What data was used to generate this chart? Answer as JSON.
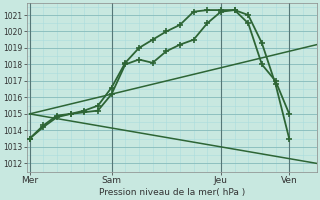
{
  "background_color": "#c8e8e0",
  "grid_color_major": "#88bbbb",
  "grid_color_minor": "#aadddd",
  "line_color": "#2d6535",
  "ylabel_ticks": [
    1012,
    1013,
    1014,
    1015,
    1016,
    1017,
    1018,
    1019,
    1020,
    1021
  ],
  "xlabel": "Pression niveau de la mer( hPa )",
  "day_labels": [
    "Mer",
    "Sam",
    "Jeu",
    "Ven"
  ],
  "day_positions": [
    0.0,
    3.0,
    7.0,
    9.5
  ],
  "ylim": [
    1011.5,
    1021.7
  ],
  "xlim": [
    -0.1,
    10.5
  ],
  "series": [
    {
      "x": [
        0.0,
        0.5,
        1.0,
        1.5,
        2.0,
        2.5,
        3.0,
        3.5,
        4.0,
        4.5,
        5.0,
        5.5,
        6.0,
        6.5,
        7.0,
        7.5,
        8.0,
        8.5,
        9.0,
        9.5
      ],
      "y": [
        1013.5,
        1014.3,
        1014.9,
        1015.0,
        1015.1,
        1015.2,
        1016.2,
        1018.0,
        1018.3,
        1018.1,
        1018.8,
        1019.2,
        1019.5,
        1020.5,
        1021.2,
        1021.3,
        1020.5,
        1018.0,
        1017.0,
        1015.0
      ],
      "marker": "+",
      "markersize": 5,
      "linewidth": 1.3
    },
    {
      "x": [
        0.0,
        0.5,
        1.0,
        1.5,
        2.0,
        2.5,
        3.0,
        3.5,
        4.0,
        4.5,
        5.0,
        5.5,
        6.0,
        6.5,
        7.0,
        7.5,
        8.0,
        8.5,
        9.0,
        9.5
      ],
      "y": [
        1013.5,
        1014.2,
        1014.8,
        1015.0,
        1015.2,
        1015.5,
        1016.6,
        1018.1,
        1019.0,
        1019.5,
        1020.0,
        1020.4,
        1021.2,
        1021.3,
        1021.3,
        1021.3,
        1021.0,
        1019.3,
        1016.8,
        1013.5
      ],
      "marker": "+",
      "markersize": 5,
      "linewidth": 1.3
    },
    {
      "x": [
        0.0,
        10.5
      ],
      "y": [
        1015.0,
        1019.2
      ],
      "marker": null,
      "markersize": 0,
      "linewidth": 1.1
    },
    {
      "x": [
        0.0,
        10.5
      ],
      "y": [
        1015.0,
        1012.0
      ],
      "marker": null,
      "markersize": 0,
      "linewidth": 1.1
    }
  ]
}
